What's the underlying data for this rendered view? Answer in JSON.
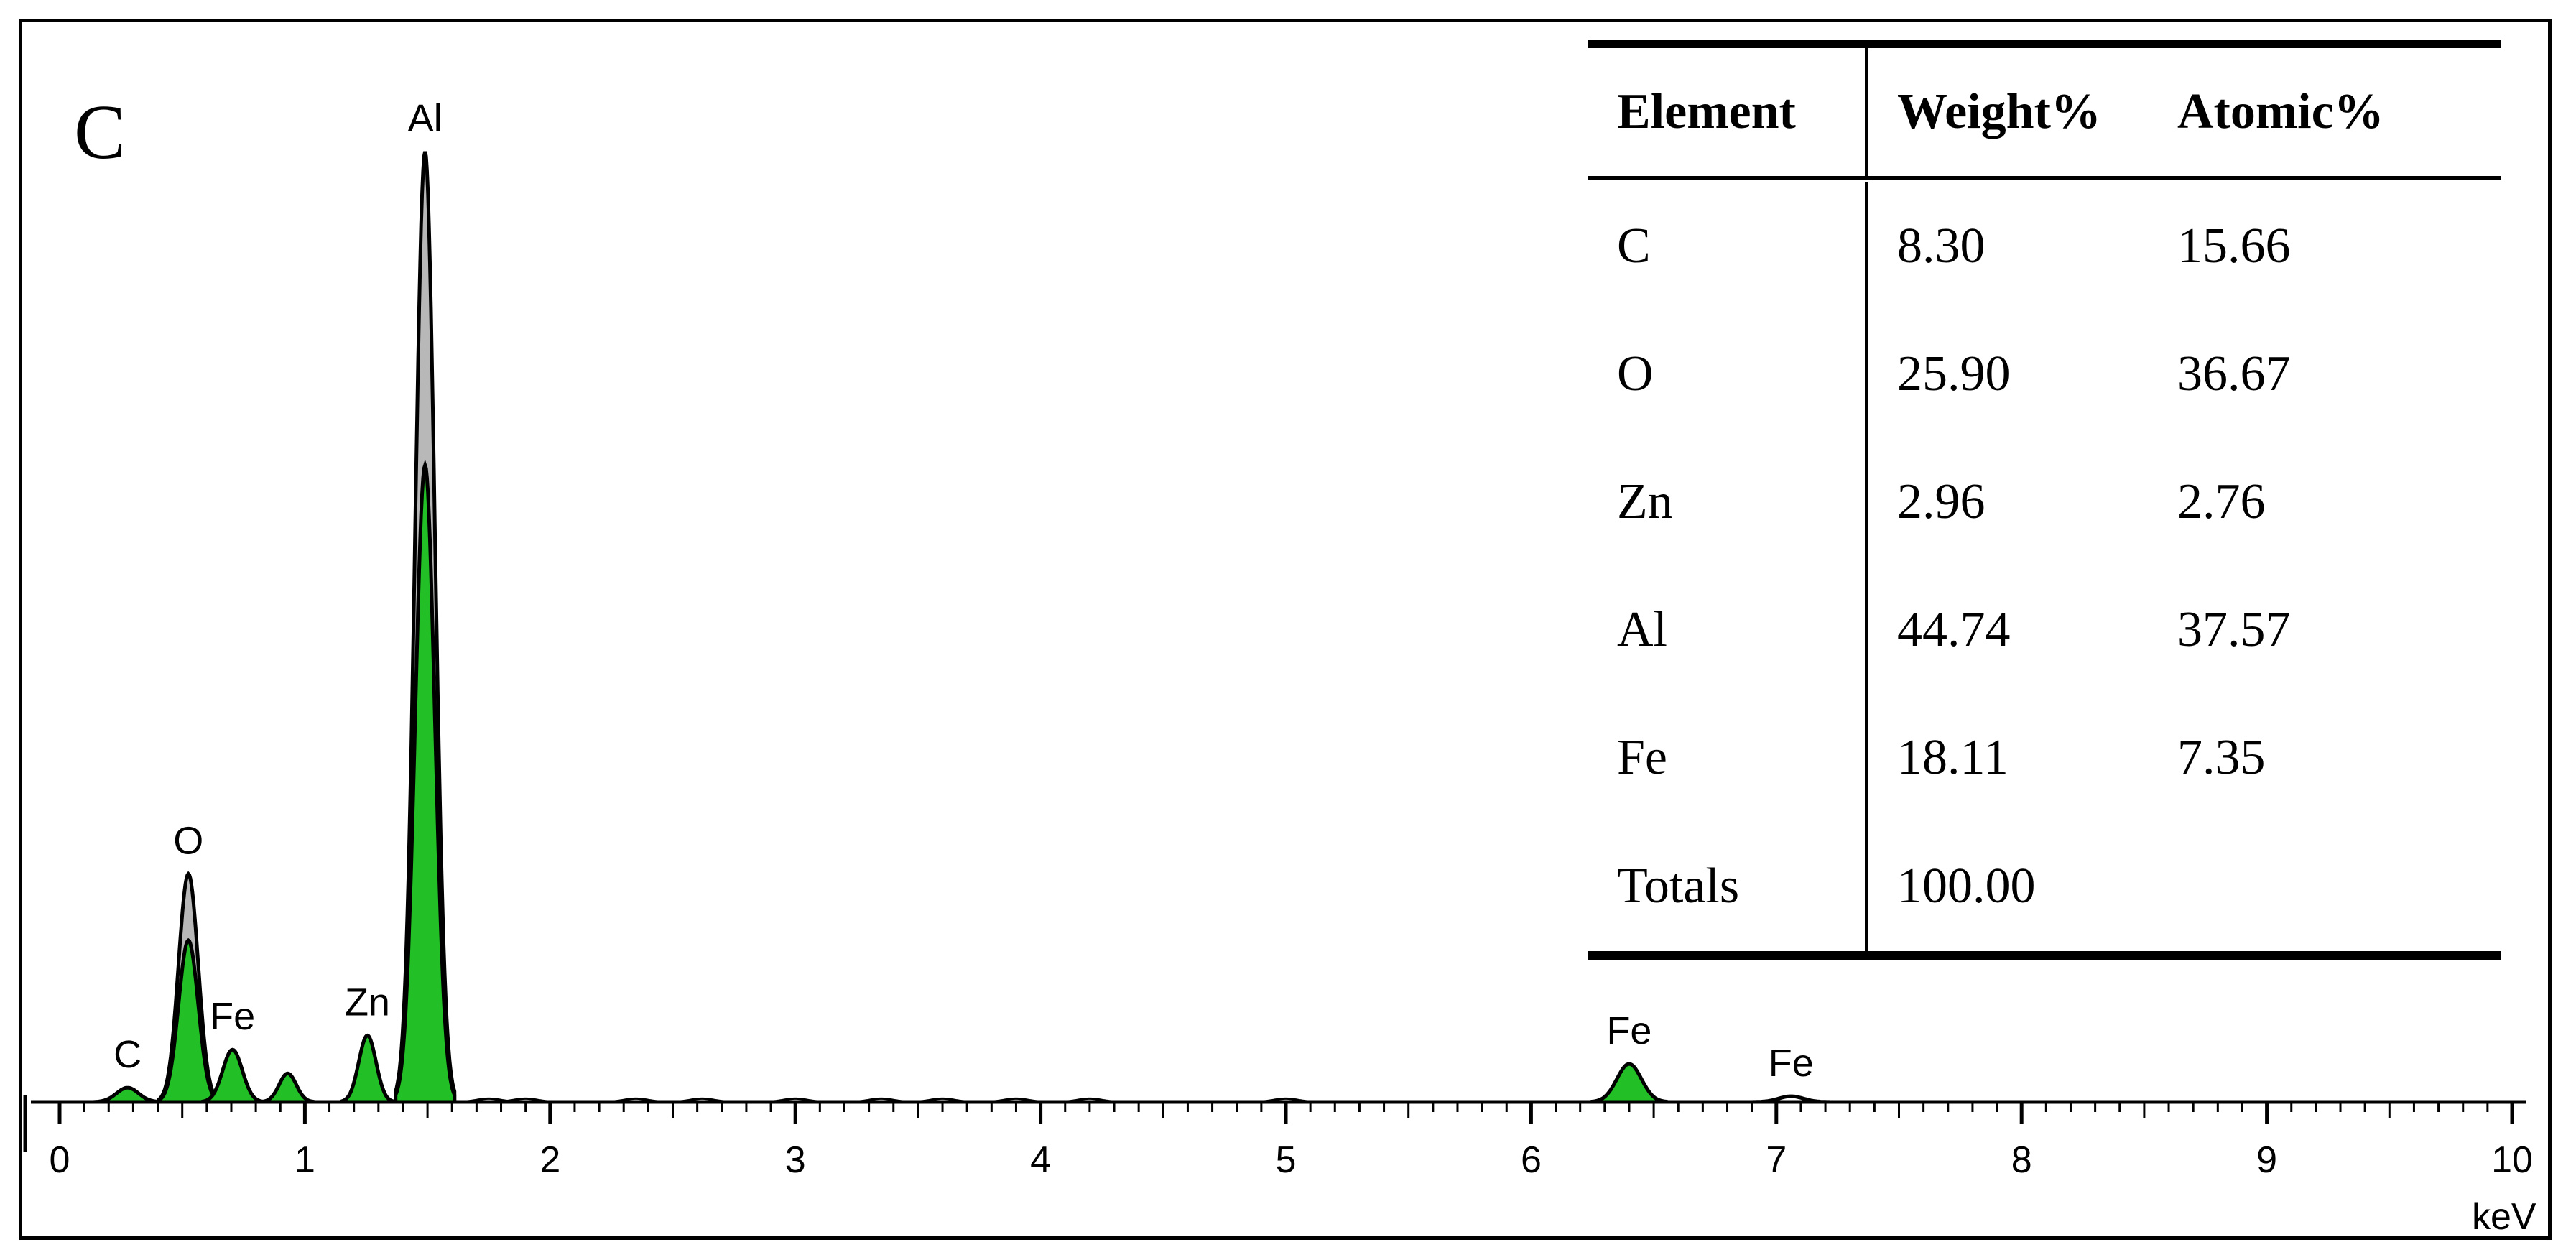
{
  "panel_letter": "C",
  "chart_data": {
    "type": "line",
    "title": "",
    "xlabel": "",
    "ylabel": "",
    "x_unit": "keV",
    "xlim": [
      0,
      10
    ],
    "ylim": [
      0,
      100
    ],
    "x_ticks": [
      "0",
      "1",
      "2",
      "3",
      "4",
      "5",
      "6",
      "7",
      "8",
      "9",
      "10"
    ],
    "peaks": [
      {
        "label": "C",
        "keV": 0.277,
        "height": 1.5,
        "width": 0.045,
        "fill": "green"
      },
      {
        "label": "O",
        "keV": 0.525,
        "height": 24,
        "width": 0.04,
        "fill": "gray"
      },
      {
        "label": "",
        "keV": 0.525,
        "height": 17,
        "width": 0.04,
        "fill": "green"
      },
      {
        "label": "Fe",
        "keV": 0.705,
        "height": 5.5,
        "width": 0.04,
        "fill": "green"
      },
      {
        "label": "",
        "keV": 0.93,
        "height": 3.0,
        "width": 0.035,
        "fill": "green"
      },
      {
        "label": "Zn",
        "keV": 1.255,
        "height": 7.0,
        "width": 0.035,
        "fill": "green"
      },
      {
        "label": "Al",
        "keV": 1.49,
        "height": 100,
        "width": 0.04,
        "fill": "gray"
      },
      {
        "label": "",
        "keV": 1.49,
        "height": 67,
        "width": 0.04,
        "fill": "green"
      },
      {
        "label": "Fe",
        "keV": 6.4,
        "height": 4.0,
        "width": 0.05,
        "fill": "green"
      },
      {
        "label": "Fe",
        "keV": 7.06,
        "height": 0.6,
        "width": 0.05,
        "fill": "none"
      }
    ],
    "colors": {
      "green": "#22c026",
      "gray": "#b8b8b8",
      "line": "#000000"
    }
  },
  "composition_table": {
    "headers": [
      "Element",
      "Weight%",
      "Atomic%"
    ],
    "rows": [
      [
        "C",
        "8.30",
        "15.66"
      ],
      [
        "O",
        "25.90",
        "36.67"
      ],
      [
        "Zn",
        "2.96",
        "2.76"
      ],
      [
        "Al",
        "44.74",
        "37.57"
      ],
      [
        "Fe",
        "18.11",
        "7.35"
      ],
      [
        "Totals",
        "100.00",
        ""
      ]
    ]
  }
}
